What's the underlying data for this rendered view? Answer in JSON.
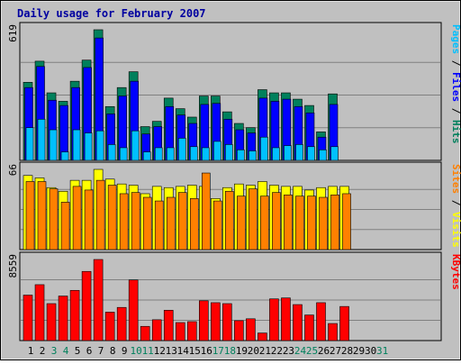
{
  "title": "Daily usage for February 2007",
  "colors": {
    "outer_bg": "#c0c0c0",
    "panel_bg": "#c0c0c0",
    "title": "#0000a0",
    "hits": "#00805c",
    "files": "#0000ff",
    "pages": "#00c0ff",
    "visits": "#ffff00",
    "sites": "#ff8000",
    "kbytes": "#ff0000",
    "grid": "#808080",
    "weekend_label": "#00805c",
    "weekday_label": "#000000"
  },
  "chart_data": {
    "type": "bar",
    "x": [
      "1",
      "2",
      "3",
      "4",
      "5",
      "6",
      "7",
      "8",
      "9",
      "10",
      "11",
      "12",
      "13",
      "14",
      "15",
      "16",
      "17",
      "18",
      "19",
      "20",
      "21",
      "22",
      "23",
      "24",
      "25",
      "26",
      "27",
      "28",
      "29",
      "30",
      "31"
    ],
    "weekend_days": [
      "3",
      "4",
      "10",
      "11",
      "17",
      "18",
      "24",
      "25",
      "31"
    ],
    "panels": [
      {
        "name": "hits_files_pages",
        "max_label": "619",
        "ymax": 619,
        "side_label": [
          {
            "text": "Pages",
            "color": "#00c0ff"
          },
          {
            "text": " / ",
            "color": "#000000"
          },
          {
            "text": "Files",
            "color": "#0000ff"
          },
          {
            "text": " / ",
            "color": "#000000"
          },
          {
            "text": "Hits",
            "color": "#00805c"
          }
        ],
        "series": [
          {
            "name": "Hits",
            "color": "#00805c",
            "values": [
              370,
              470,
              320,
              280,
              375,
              475,
              619,
              255,
              345,
              420,
              160,
              185,
              295,
              245,
              205,
              305,
              305,
              230,
              175,
              155,
              335,
              320,
              320,
              290,
              260,
              135,
              315,
              0,
              0,
              0,
              0
            ]
          },
          {
            "name": "Files",
            "color": "#0000ff",
            "values": [
              345,
              445,
              285,
              260,
              345,
              440,
              580,
              220,
              305,
              375,
              125,
              160,
              255,
              215,
              175,
              265,
              270,
              195,
              145,
              130,
              295,
              280,
              290,
              255,
              225,
              110,
              265,
              0,
              0,
              0,
              0
            ]
          },
          {
            "name": "Pages",
            "color": "#00c0ff",
            "values": [
              155,
              195,
              145,
              40,
              145,
              130,
              140,
              75,
              60,
              140,
              40,
              60,
              60,
              105,
              65,
              60,
              90,
              75,
              50,
              45,
              110,
              60,
              70,
              75,
              65,
              50,
              65,
              0,
              0,
              0,
              0
            ]
          }
        ]
      },
      {
        "name": "visits_sites",
        "max_label": "66",
        "ymax": 66,
        "side_label": [
          {
            "text": "Sites",
            "color": "#ff8000"
          },
          {
            "text": " / ",
            "color": "#000000"
          },
          {
            "text": "Visits",
            "color": "#ffff00"
          }
        ],
        "series": [
          {
            "name": "Visits",
            "color": "#ffff00",
            "values": [
              61,
              59,
              51,
              48,
              57,
              57,
              66,
              58,
              54,
              53,
              46,
              52,
              51,
              52,
              53,
              52,
              42,
              51,
              54,
              53,
              56,
              53,
              52,
              52,
              49,
              51,
              52,
              52,
              0,
              0,
              0
            ]
          },
          {
            "name": "Sites",
            "color": "#ff8000",
            "values": [
              56,
              56,
              50,
              39,
              52,
              49,
              57,
              53,
              46,
              47,
              43,
              40,
              43,
              47,
              42,
              63,
              40,
              48,
              44,
              50,
              44,
              47,
              45,
              44,
              44,
              43,
              45,
              46,
              0,
              0,
              0
            ]
          }
        ]
      },
      {
        "name": "kbytes",
        "max_label": "8559",
        "ymax": 8559,
        "side_label": [
          {
            "text": "KBytes",
            "color": "#ff0000"
          }
        ],
        "series": [
          {
            "name": "KBytes",
            "color": "#ff0000",
            "values": [
              4800,
              5900,
              3900,
              4700,
              5300,
              7300,
              8559,
              3000,
              3500,
              6400,
              1500,
              2200,
              3200,
              1900,
              2000,
              4200,
              4000,
              3900,
              2100,
              2300,
              800,
              4400,
              4500,
              3800,
              2700,
              4000,
              1800,
              3600,
              0,
              0,
              0
            ]
          }
        ]
      }
    ]
  }
}
